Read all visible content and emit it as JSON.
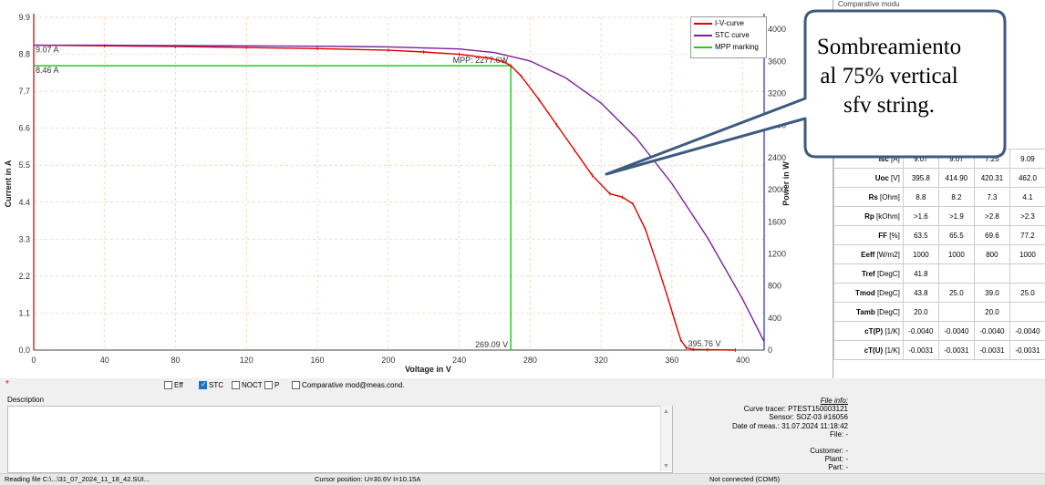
{
  "chart_data": {
    "type": "line",
    "xlabel": "Voltage in V",
    "ylabel": "Current in A",
    "y2label": "Power in W",
    "xlim": [
      0,
      412
    ],
    "ylim": [
      0,
      9.9
    ],
    "y2lim": [
      0,
      4150
    ],
    "x_ticks": [
      0,
      40,
      80,
      120,
      160,
      200,
      240,
      280,
      320,
      360,
      400
    ],
    "y_ticks": [
      0.0,
      1.1,
      2.2,
      3.3,
      4.4,
      5.5,
      6.6,
      7.7,
      8.8,
      9.9
    ],
    "y2_ticks": [
      0,
      400,
      800,
      1200,
      1600,
      2000,
      2400,
      2800,
      3200,
      3600,
      4000
    ],
    "grid": true,
    "legend_position": "top-right",
    "series": [
      {
        "name": "I-V-curve",
        "color": "#e00000",
        "x": [
          0,
          40,
          80,
          120,
          160,
          200,
          220,
          240,
          255,
          265,
          269.09,
          275,
          285,
          295,
          305,
          315,
          325,
          332,
          338,
          345,
          352,
          358,
          362,
          365,
          368,
          372,
          380,
          395.76
        ],
        "y": [
          9.07,
          9.05,
          9.03,
          9.0,
          8.97,
          8.92,
          8.87,
          8.8,
          8.7,
          8.58,
          8.46,
          8.15,
          7.45,
          6.7,
          5.95,
          5.2,
          4.65,
          4.55,
          4.35,
          3.6,
          2.5,
          1.5,
          0.8,
          0.3,
          0.07,
          0.02,
          0.01,
          0.0
        ]
      },
      {
        "name": "STC curve",
        "color": "#7a1fa0",
        "x": [
          0,
          40,
          80,
          120,
          160,
          200,
          240,
          260,
          280,
          300,
          320,
          340,
          360,
          380,
          400,
          412
        ],
        "y": [
          9.07,
          9.07,
          9.06,
          9.05,
          9.04,
          9.02,
          8.96,
          8.85,
          8.6,
          8.1,
          7.35,
          6.3,
          4.95,
          3.35,
          1.5,
          0.25
        ]
      }
    ],
    "mpp_marking": {
      "name": "MPP marking",
      "color": "#22cc22",
      "voltage": 269.09,
      "current": 8.46,
      "power_label": "MPP: 2277.6W",
      "voltage_label": "269.09 V",
      "current_label": "8.46 A"
    },
    "annotations": {
      "isc_label": "9.07 A",
      "voc_label": "395.76 V"
    }
  },
  "legend": {
    "items": [
      {
        "label": "I-V-curve",
        "color": "#e00000"
      },
      {
        "label": "STC curve",
        "color": "#7a1fa0"
      },
      {
        "label": "MPP marking",
        "color": "#22cc22"
      }
    ]
  },
  "callout": {
    "lines": [
      "Sombreamiento",
      "al 75% vertical",
      "sfv string."
    ],
    "header_fragment": "Comparative modu"
  },
  "params": {
    "rows": [
      {
        "name": "Isc",
        "unit": "[A]",
        "values": [
          "9.07",
          "9.07",
          "7.25",
          "9.09"
        ]
      },
      {
        "name": "Uoc",
        "unit": "[V]",
        "values": [
          "395.8",
          "414.90",
          "420.31",
          "462.0"
        ]
      },
      {
        "name": "Rs",
        "unit": "[Ohm]",
        "values": [
          "8.8",
          "8.2",
          "7.3",
          "4.1"
        ]
      },
      {
        "name": "Rp",
        "unit": "[kOhm]",
        "values": [
          ">1.6",
          ">1.9",
          ">2.8",
          ">2.3"
        ]
      },
      {
        "name": "FF",
        "unit": "[%]",
        "values": [
          "63.5",
          "65.5",
          "69.6",
          "77.2"
        ]
      },
      {
        "name": "Eeff",
        "unit": "[W/m2]",
        "values": [
          "1000",
          "1000",
          "800",
          "1000"
        ]
      },
      {
        "name": "Tref",
        "unit": "[DegC]",
        "values": [
          "41.8",
          "",
          "",
          ""
        ]
      },
      {
        "name": "Tmod",
        "unit": "[DegC]",
        "values": [
          "43.8",
          "25.0",
          "39.0",
          "25.0"
        ]
      },
      {
        "name": "Tamb",
        "unit": "[DegC]",
        "values": [
          "20.0",
          "",
          "20.0",
          ""
        ]
      },
      {
        "name": "cT(P)",
        "unit": "[1/K]",
        "values": [
          "-0.0040",
          "-0.0040",
          "-0.0040",
          "-0.0040"
        ]
      },
      {
        "name": "cT(U)",
        "unit": "[1/K]",
        "values": [
          "-0.0031",
          "-0.0031",
          "-0.0031",
          "-0.0031"
        ]
      }
    ]
  },
  "checkboxes": [
    {
      "label": "Eff",
      "checked": false
    },
    {
      "label": "STC",
      "checked": true
    },
    {
      "label": "NOCT",
      "checked": false
    },
    {
      "label": "P",
      "checked": false
    },
    {
      "label": "Comparative mod@meas.cond.",
      "checked": false
    }
  ],
  "description": {
    "label": "Description",
    "marker": "*"
  },
  "file_info": {
    "title": "File info:",
    "lines": [
      "Curve tracer: PTEST150003121",
      "Sensor: SOZ-03 #16056",
      "Date of meas.: 31.07.2024  11:18:42",
      "File: -",
      "",
      "Customer: -",
      "Plant: -",
      "Part: -"
    ]
  },
  "status": {
    "reading": "Reading file C:\\...\\31_07_2024_11_18_42.SUI...",
    "cursor": "Cursor position: U=30.6V  I=10.15A",
    "connection": "Not connected (COM5)"
  }
}
